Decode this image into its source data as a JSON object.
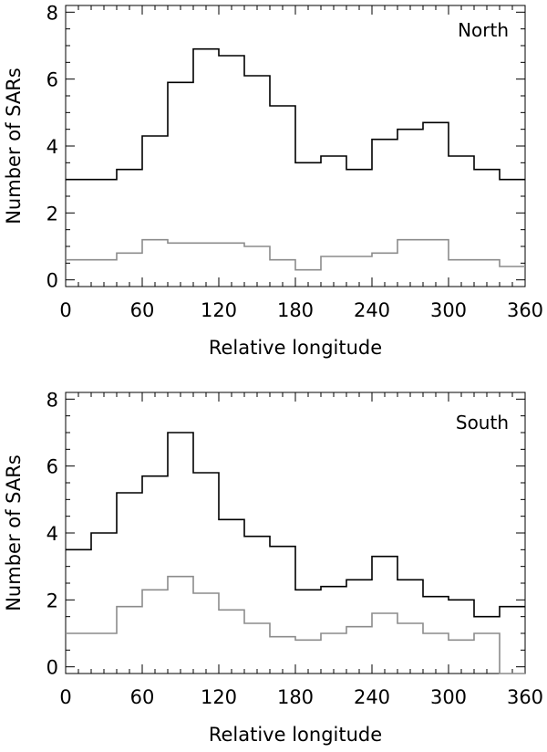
{
  "chart_data": [
    {
      "type": "line",
      "panel": "top",
      "title": "",
      "annotation": "North",
      "xlabel": "Relative longitude",
      "ylabel": "Number of SARs",
      "xlim": [
        0,
        360
      ],
      "ylim": [
        -0.2,
        8.2
      ],
      "xticks": [
        0,
        60,
        120,
        180,
        240,
        300,
        360
      ],
      "xtick_labels": [
        "0",
        "60",
        "120",
        "180",
        "240",
        "300",
        "360"
      ],
      "yticks": [
        0,
        2,
        4,
        6,
        8
      ],
      "ytick_labels": [
        "0",
        "2",
        "4",
        "6",
        "8"
      ],
      "bin_edges": [
        0,
        20,
        40,
        60,
        80,
        100,
        120,
        140,
        160,
        180,
        200,
        220,
        240,
        260,
        280,
        300,
        320,
        340,
        360
      ],
      "series": [
        {
          "name": "upper histogram",
          "color": "#000000",
          "values": [
            3.0,
            3.0,
            3.3,
            4.3,
            5.9,
            6.9,
            6.7,
            6.1,
            5.2,
            3.5,
            3.7,
            3.3,
            4.2,
            4.5,
            4.7,
            3.7,
            3.3,
            3.0
          ]
        },
        {
          "name": "lower histogram",
          "color": "#8c8c8c",
          "values": [
            0.6,
            0.6,
            0.8,
            1.2,
            1.1,
            1.1,
            1.1,
            1.0,
            0.6,
            0.3,
            0.7,
            0.7,
            0.8,
            1.2,
            1.2,
            0.6,
            0.6,
            0.4
          ]
        }
      ]
    },
    {
      "type": "line",
      "panel": "bottom",
      "title": "",
      "annotation": "South",
      "xlabel": "Relative longitude",
      "ylabel": "Number of SARs",
      "xlim": [
        0,
        360
      ],
      "ylim": [
        -0.2,
        8.2
      ],
      "xticks": [
        0,
        60,
        120,
        180,
        240,
        300,
        360
      ],
      "xtick_labels": [
        "0",
        "60",
        "120",
        "180",
        "240",
        "300",
        "360"
      ],
      "yticks": [
        0,
        2,
        4,
        6,
        8
      ],
      "ytick_labels": [
        "0",
        "2",
        "4",
        "6",
        "8"
      ],
      "bin_edges": [
        0,
        20,
        40,
        60,
        80,
        100,
        120,
        140,
        160,
        180,
        200,
        220,
        240,
        260,
        280,
        300,
        320,
        340,
        360
      ],
      "series": [
        {
          "name": "upper histogram",
          "color": "#000000",
          "values": [
            3.5,
            4.0,
            5.2,
            5.7,
            7.0,
            5.8,
            4.4,
            3.9,
            3.6,
            2.3,
            2.4,
            2.6,
            3.3,
            2.6,
            2.1,
            2.0,
            1.5,
            1.8
          ]
        },
        {
          "name": "lower histogram",
          "color": "#8c8c8c",
          "values": [
            1.0,
            1.0,
            1.8,
            2.3,
            2.7,
            2.2,
            1.7,
            1.3,
            0.9,
            0.8,
            1.0,
            1.2,
            1.6,
            1.3,
            1.0,
            0.8,
            1.0,
            -0.2
          ]
        }
      ]
    }
  ]
}
